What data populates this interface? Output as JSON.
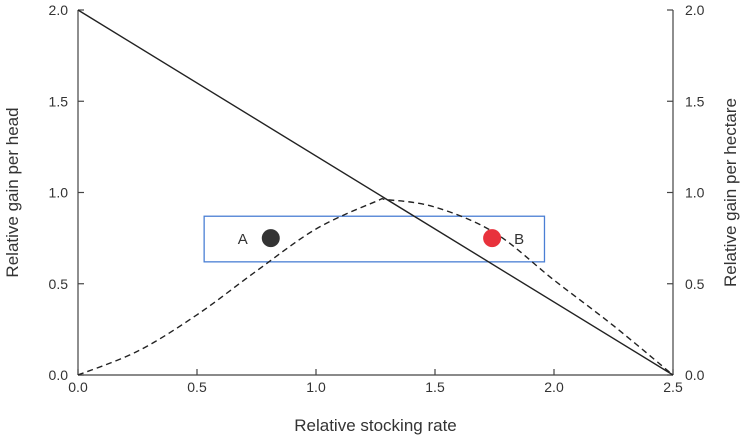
{
  "chart_data": {
    "type": "line",
    "title": "",
    "xlabel": "Relative stocking rate",
    "ylabel": "Relative gain per head",
    "y2label": "Relative gain per hectare",
    "xlim": [
      0,
      2.5
    ],
    "ylim": [
      0,
      2.0
    ],
    "y2lim": [
      0,
      2.0
    ],
    "x_ticks": [
      "0.0",
      "0.5",
      "1.0",
      "1.5",
      "2.0",
      "2.5"
    ],
    "y_ticks": [
      "0.0",
      "0.5",
      "1.0",
      "1.5",
      "2.0"
    ],
    "y2_ticks": [
      "0.0",
      "0.5",
      "1.0",
      "1.5",
      "2.0"
    ],
    "grid": false,
    "legend": "none",
    "series": [
      {
        "style": "solid",
        "color": "#222222",
        "x": [
          0,
          2.5
        ],
        "y": [
          2.0,
          0.0
        ]
      },
      {
        "style": "dashed",
        "color": "#222222",
        "x": [
          0,
          0.25,
          0.5,
          0.75,
          1.0,
          1.25,
          1.3,
          1.5,
          1.75,
          2.0,
          2.25,
          2.5
        ],
        "y": [
          0,
          0.13,
          0.33,
          0.57,
          0.8,
          0.95,
          0.96,
          0.92,
          0.78,
          0.52,
          0.27,
          0
        ]
      }
    ],
    "points": [
      {
        "label": "A",
        "x": 0.81,
        "y": 0.75,
        "color": "#333333"
      },
      {
        "label": "B",
        "x": 1.74,
        "y": 0.75,
        "color": "#e8323c"
      }
    ],
    "highlight_box": {
      "x": [
        0.53,
        1.96
      ],
      "y": [
        0.62,
        0.87
      ],
      "color": "#4a7fd4"
    }
  }
}
